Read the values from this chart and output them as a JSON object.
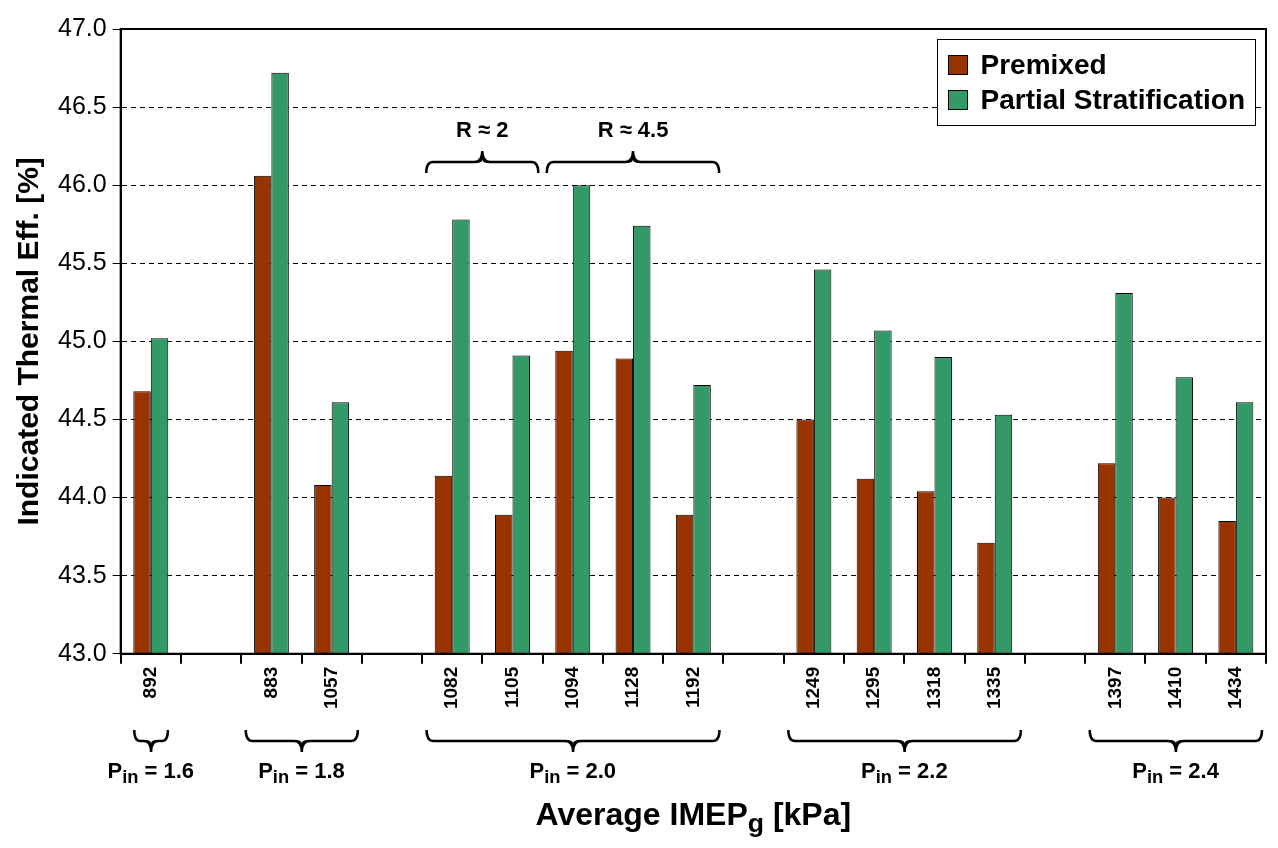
{
  "chart_data": {
    "type": "bar",
    "ylabel": "Indicated Thermal Eff. [%]",
    "xlabel": "Average IMEP$_{g}$ [kPa]",
    "categories": [
      "892",
      null,
      "883",
      "1057",
      null,
      "1082",
      "1105",
      "1094",
      "1128",
      "1192",
      null,
      "1249",
      "1295",
      "1318",
      "1335",
      null,
      "1397",
      "1410",
      "1434"
    ],
    "series": [
      {
        "name": "Premixed",
        "color": "#993300",
        "values": [
          44.68,
          null,
          46.06,
          44.08,
          null,
          44.14,
          43.89,
          44.94,
          44.89,
          43.89,
          null,
          44.5,
          44.12,
          44.04,
          43.71,
          null,
          44.22,
          44.0,
          43.85
        ]
      },
      {
        "name": "Partial Stratification",
        "color": "#339966",
        "values": [
          45.02,
          null,
          46.72,
          44.61,
          null,
          45.78,
          44.91,
          46.0,
          45.74,
          44.72,
          null,
          45.46,
          45.07,
          44.9,
          44.53,
          null,
          45.31,
          44.77,
          44.61
        ]
      }
    ],
    "ylim": [
      43,
      47
    ],
    "yticks": [
      {
        "value": 43,
        "label": "43.0"
      },
      {
        "value": 43.5,
        "label": "43.5"
      },
      {
        "value": 44,
        "label": "44.0"
      },
      {
        "value": 44.5,
        "label": "44.5"
      },
      {
        "value": 45,
        "label": "45.0"
      },
      {
        "value": 45.5,
        "label": "45.5"
      },
      {
        "value": 46,
        "label": "46.0"
      },
      {
        "value": 46.5,
        "label": "46.5"
      },
      {
        "value": 47,
        "label": "47.0"
      }
    ],
    "grid": "y",
    "legend": "top right",
    "annotations": [
      "R ≈ 2",
      "R ≈ 4.5",
      "P$_{in}$ = 1.6",
      "P$_{in}$ = 1.8",
      "P$_{in}$ = 2.0",
      "P$_{in}$ = 2.2",
      "P$_{in}$ = 2.4"
    ]
  }
}
